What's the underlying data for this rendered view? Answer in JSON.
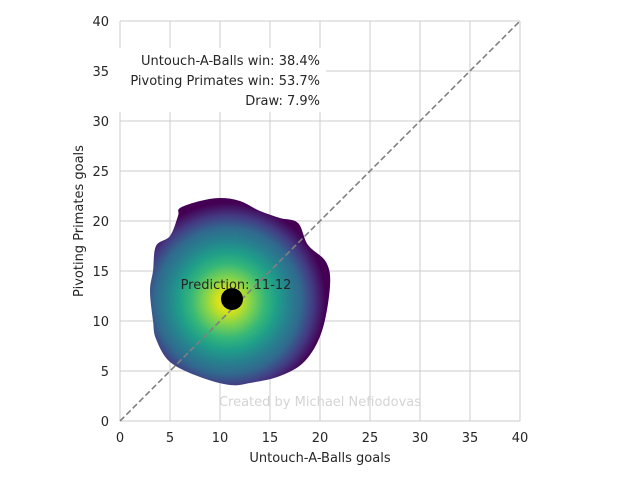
{
  "chart_data": {
    "type": "density",
    "xlabel": "Untouch-A-Balls goals",
    "ylabel": "Pivoting Primates goals",
    "xlim": [
      0,
      40
    ],
    "ylim": [
      0,
      40
    ],
    "x_ticks": [
      0,
      5,
      10,
      15,
      20,
      25,
      30,
      35,
      40
    ],
    "y_ticks": [
      0,
      5,
      10,
      15,
      20,
      25,
      30,
      35,
      40
    ],
    "grid": true,
    "diagonal_line": {
      "from": [
        0,
        0
      ],
      "to": [
        40,
        40
      ],
      "style": "dashed",
      "color": "#808080"
    },
    "win_probabilities": {
      "team_a": "Untouch-A-Balls win: 38.4%",
      "team_b": "Pivoting Primates win: 53.7%",
      "draw": "Draw: 7.9%"
    },
    "prediction": {
      "label": "Prediction: 11-12",
      "x": 11.2,
      "y": 12.2,
      "color": "#000000"
    },
    "density": {
      "colormap": "viridis",
      "center": [
        10.8,
        12.0
      ],
      "boundary": [
        [
          6,
          21.3
        ],
        [
          8,
          22.0
        ],
        [
          10,
          22.3
        ],
        [
          12,
          22.0
        ],
        [
          14,
          21.0
        ],
        [
          16,
          20.3
        ],
        [
          17.8,
          19.8
        ],
        [
          18.8,
          17.6
        ],
        [
          20.6,
          15.9
        ],
        [
          21.0,
          13.5
        ],
        [
          20.2,
          9.0
        ],
        [
          18.5,
          6.0
        ],
        [
          16.0,
          4.5
        ],
        [
          13.0,
          3.8
        ],
        [
          11.0,
          3.6
        ],
        [
          8.0,
          4.4
        ],
        [
          5.0,
          5.9
        ],
        [
          3.6,
          8.2
        ],
        [
          3.3,
          10.0
        ],
        [
          3.0,
          13.0
        ],
        [
          3.3,
          15.0
        ],
        [
          3.6,
          17.5
        ],
        [
          5.0,
          18.5
        ],
        [
          5.8,
          20.5
        ]
      ]
    },
    "colors": {
      "grid": "#cccccc",
      "text": "#262626",
      "diagonal": "#808080"
    }
  },
  "watermark": "Created by Michael Nefiodovas"
}
